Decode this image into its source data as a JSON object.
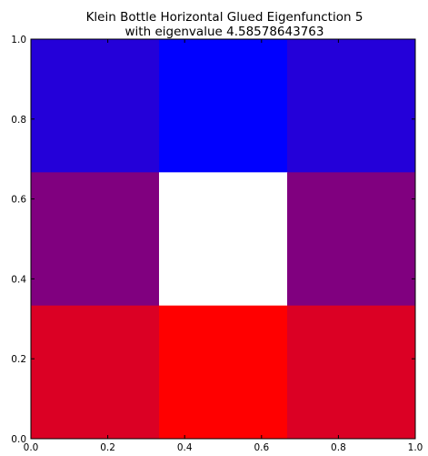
{
  "chart_data": {
    "type": "heatmap",
    "title": "Klein Bottle Horizontal Glued Eigenfunction 5",
    "subtitle": "with eigenvalue 4.58578643763",
    "xlabel": "",
    "ylabel": "",
    "xlim": [
      0.0,
      1.0
    ],
    "ylim": [
      0.0,
      1.0
    ],
    "x_ticks": [
      "0.0",
      "0.2",
      "0.4",
      "0.6",
      "0.8",
      "1.0"
    ],
    "y_ticks": [
      "0.0",
      "0.2",
      "0.4",
      "0.6",
      "0.8",
      "1.0"
    ],
    "grid": false,
    "legend": "none",
    "x_edges": [
      0.0,
      0.3333,
      0.6667,
      1.0
    ],
    "y_edges": [
      0.0,
      0.3333,
      0.6667,
      1.0
    ],
    "rows_top_to_bottom": [
      [
        "#2400d9",
        "#0000ff",
        "#2400d9"
      ],
      [
        "#80007f",
        "#ffffff",
        "#80007f"
      ],
      [
        "#db0024",
        "#ff0000",
        "#db0024"
      ]
    ]
  }
}
